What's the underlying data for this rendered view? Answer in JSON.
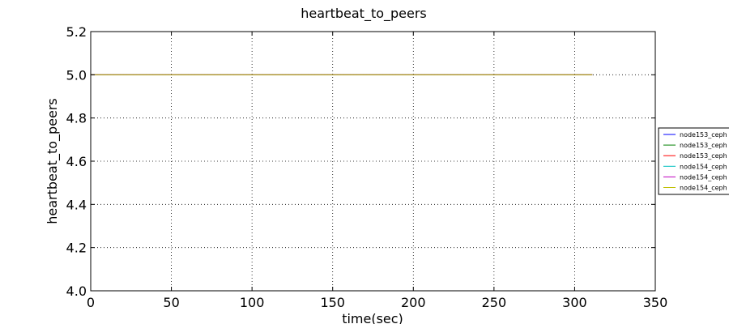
{
  "chart_data": {
    "type": "line",
    "title": "heartbeat_to_peers",
    "xlabel": "time(sec)",
    "ylabel": "heartbeat_to_peers",
    "xlim": [
      0,
      350
    ],
    "ylim": [
      4.0,
      5.2
    ],
    "xticks": [
      "0",
      "50",
      "100",
      "150",
      "200",
      "250",
      "300",
      "350"
    ],
    "yticks": [
      "4.0",
      "4.2",
      "4.4",
      "4.6",
      "4.8",
      "5.0",
      "5.2"
    ],
    "grid": true,
    "legend_position": "right, outside plot",
    "series": [
      {
        "name": "node153_ceph",
        "color": "#0000ff",
        "x": [
          0,
          311
        ],
        "y": [
          5.0,
          5.0
        ]
      },
      {
        "name": "node153_ceph",
        "color": "#008000",
        "x": [
          0,
          311
        ],
        "y": [
          5.0,
          5.0
        ]
      },
      {
        "name": "node153_ceph",
        "color": "#ff0000",
        "x": [
          0,
          311
        ],
        "y": [
          5.0,
          5.0
        ]
      },
      {
        "name": "node154_ceph",
        "color": "#00bfbf",
        "x": [
          0,
          311
        ],
        "y": [
          5.0,
          5.0
        ]
      },
      {
        "name": "node154_ceph",
        "color": "#bf00bf",
        "x": [
          0,
          311
        ],
        "y": [
          5.0,
          5.0
        ]
      },
      {
        "name": "node154_ceph",
        "color": "#bfbf00",
        "x": [
          0,
          311
        ],
        "y": [
          5.0,
          5.0
        ]
      }
    ]
  }
}
